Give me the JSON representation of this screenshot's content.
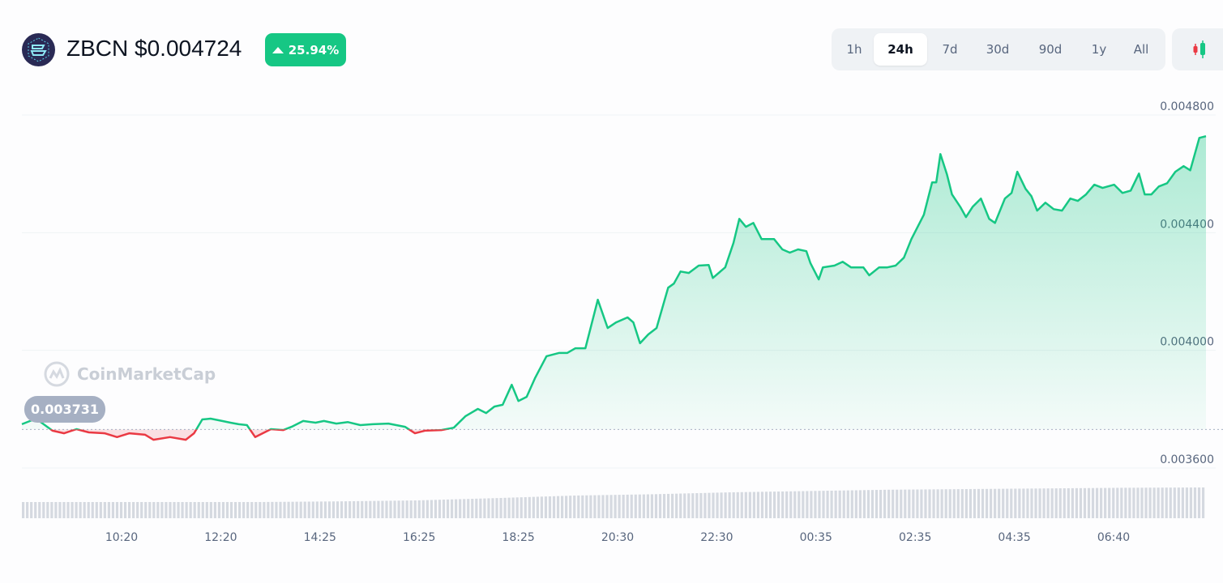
{
  "header": {
    "symbol": "ZBCN",
    "price": "$0.004724",
    "change": "25.94%",
    "change_direction": "up",
    "logo_icon": "zebec-logo"
  },
  "range_tabs": [
    {
      "label": "1h",
      "active": false
    },
    {
      "label": "24h",
      "active": true
    },
    {
      "label": "7d",
      "active": false
    },
    {
      "label": "30d",
      "active": false
    },
    {
      "label": "90d",
      "active": false
    },
    {
      "label": "1y",
      "active": false
    },
    {
      "label": "All",
      "active": false
    }
  ],
  "chart_type_button": {
    "icon": "candlestick-icon"
  },
  "watermark": "CoinMarketCap",
  "colors": {
    "up": "#16c784",
    "down": "#ea3943",
    "grid": "#eff2f5",
    "baseline_tag": "#a6b0c3",
    "volume": "#d5d9e0"
  },
  "chart_data": {
    "type": "area",
    "ylim": [
      0.0036,
      0.0048
    ],
    "yticks": [
      "0.003600",
      "0.004000",
      "0.004400",
      "0.004800"
    ],
    "ytick_values": [
      0.0036,
      0.004,
      0.0044,
      0.0048
    ],
    "xticks": [
      "10:20",
      "12:20",
      "14:25",
      "16:25",
      "18:25",
      "20:30",
      "22:30",
      "00:35",
      "02:35",
      "04:35",
      "06:40"
    ],
    "baseline": {
      "value": 0.003731,
      "label": "0.003731"
    },
    "grid": true,
    "series": [
      {
        "points": [
          [
            "08:20",
            0.003749
          ],
          [
            "08:37",
            0.003768
          ],
          [
            "08:57",
            0.003727
          ],
          [
            "09:11",
            0.003718
          ],
          [
            "09:26",
            0.003732
          ],
          [
            "09:41",
            0.003721
          ],
          [
            "10:00",
            0.003718
          ],
          [
            "10:15",
            0.003705
          ],
          [
            "10:30",
            0.003718
          ],
          [
            "10:49",
            0.003713
          ],
          [
            "10:59",
            0.003696
          ],
          [
            "11:19",
            0.003705
          ],
          [
            "11:38",
            0.003696
          ],
          [
            "11:48",
            0.003718
          ],
          [
            "11:58",
            0.003765
          ],
          [
            "12:08",
            0.003768
          ],
          [
            "12:22",
            0.00376
          ],
          [
            "12:32",
            0.003754
          ],
          [
            "12:42",
            0.003749
          ],
          [
            "12:52",
            0.003746
          ],
          [
            "13:02",
            0.003705
          ],
          [
            "13:11",
            0.003718
          ],
          [
            "13:21",
            0.003732
          ],
          [
            "13:36",
            0.003729
          ],
          [
            "13:46",
            0.00374
          ],
          [
            "14:00",
            0.00376
          ],
          [
            "14:15",
            0.003754
          ],
          [
            "14:25",
            0.00376
          ],
          [
            "14:40",
            0.003751
          ],
          [
            "14:54",
            0.003756
          ],
          [
            "15:09",
            0.003746
          ],
          [
            "15:24",
            0.003749
          ],
          [
            "15:43",
            0.003751
          ],
          [
            "16:03",
            0.00374
          ],
          [
            "16:15",
            0.003718
          ],
          [
            "16:27",
            0.003727
          ],
          [
            "16:47",
            0.003729
          ],
          [
            "17:02",
            0.003737
          ],
          [
            "17:16",
            0.003776
          ],
          [
            "17:31",
            0.003801
          ],
          [
            "17:41",
            0.003787
          ],
          [
            "17:51",
            0.003809
          ],
          [
            "18:01",
            0.003815
          ],
          [
            "18:12",
            0.003883
          ],
          [
            "18:20",
            0.003828
          ],
          [
            "18:30",
            0.003842
          ],
          [
            "18:40",
            0.003905
          ],
          [
            "18:54",
            0.00398
          ],
          [
            "19:09",
            0.003991
          ],
          [
            "19:19",
            0.003991
          ],
          [
            "19:29",
            0.004007
          ],
          [
            "19:41",
            0.004007
          ],
          [
            "19:56",
            0.004172
          ],
          [
            "20:08",
            0.004076
          ],
          [
            "20:18",
            0.004095
          ],
          [
            "20:32",
            0.004112
          ],
          [
            "20:39",
            0.004095
          ],
          [
            "20:47",
            0.004024
          ],
          [
            "20:57",
            0.004054
          ],
          [
            "21:07",
            0.004076
          ],
          [
            "21:21",
            0.004213
          ],
          [
            "21:28",
            0.004227
          ],
          [
            "21:36",
            0.004268
          ],
          [
            "21:46",
            0.004263
          ],
          [
            "21:58",
            0.004288
          ],
          [
            "22:10",
            0.00429
          ],
          [
            "22:15",
            0.004246
          ],
          [
            "22:30",
            0.004282
          ],
          [
            "22:40",
            0.004365
          ],
          [
            "22:47",
            0.004447
          ],
          [
            "22:55",
            0.00442
          ],
          [
            "23:04",
            0.004433
          ],
          [
            "23:14",
            0.004378
          ],
          [
            "23:29",
            0.004378
          ],
          [
            "23:39",
            0.004343
          ],
          [
            "23:48",
            0.004332
          ],
          [
            "23:58",
            0.004343
          ],
          [
            "00:08",
            0.004337
          ],
          [
            "00:13",
            0.004296
          ],
          [
            "00:23",
            0.004241
          ],
          [
            "00:28",
            0.004282
          ],
          [
            "00:42",
            0.004288
          ],
          [
            "00:52",
            0.004301
          ],
          [
            "01:02",
            0.004282
          ],
          [
            "01:17",
            0.004282
          ],
          [
            "01:24",
            0.004255
          ],
          [
            "01:36",
            0.004282
          ],
          [
            "01:46",
            0.004282
          ],
          [
            "01:56",
            0.004288
          ],
          [
            "02:06",
            0.004315
          ],
          [
            "02:15",
            0.004378
          ],
          [
            "02:30",
            0.004461
          ],
          [
            "02:40",
            0.004571
          ],
          [
            "02:45",
            0.004571
          ],
          [
            "02:50",
            0.004667
          ],
          [
            "02:58",
            0.004598
          ],
          [
            "03:04",
            0.00453
          ],
          [
            "03:14",
            0.004488
          ],
          [
            "03:21",
            0.004453
          ],
          [
            "03:29",
            0.004488
          ],
          [
            "03:39",
            0.004516
          ],
          [
            "03:49",
            0.004447
          ],
          [
            "03:56",
            0.004433
          ],
          [
            "04:08",
            0.004516
          ],
          [
            "04:16",
            0.004535
          ],
          [
            "04:23",
            0.004607
          ],
          [
            "04:33",
            0.004549
          ],
          [
            "04:40",
            0.004524
          ],
          [
            "04:47",
            0.004475
          ],
          [
            "04:57",
            0.004502
          ],
          [
            "05:07",
            0.00448
          ],
          [
            "05:17",
            0.004475
          ],
          [
            "05:27",
            0.004516
          ],
          [
            "05:36",
            0.004508
          ],
          [
            "05:46",
            0.00453
          ],
          [
            "05:56",
            0.004563
          ],
          [
            "06:06",
            0.004552
          ],
          [
            "06:20",
            0.004563
          ],
          [
            "06:30",
            0.004535
          ],
          [
            "06:40",
            0.004543
          ],
          [
            "06:50",
            0.004601
          ],
          [
            "06:57",
            0.00453
          ],
          [
            "07:05",
            0.00453
          ],
          [
            "07:14",
            0.004557
          ],
          [
            "07:24",
            0.004568
          ],
          [
            "07:34",
            0.004607
          ],
          [
            "07:44",
            0.004626
          ],
          [
            "07:52",
            0.004612
          ],
          [
            "08:03",
            0.004722
          ],
          [
            "08:11",
            0.004728
          ]
        ]
      }
    ],
    "volume_profile": [
      0.5,
      0.5,
      0.5,
      0.5,
      0.52,
      0.55,
      0.62,
      0.7,
      0.74,
      0.8,
      0.84,
      0.88,
      0.9,
      0.92,
      0.94,
      0.95
    ]
  }
}
